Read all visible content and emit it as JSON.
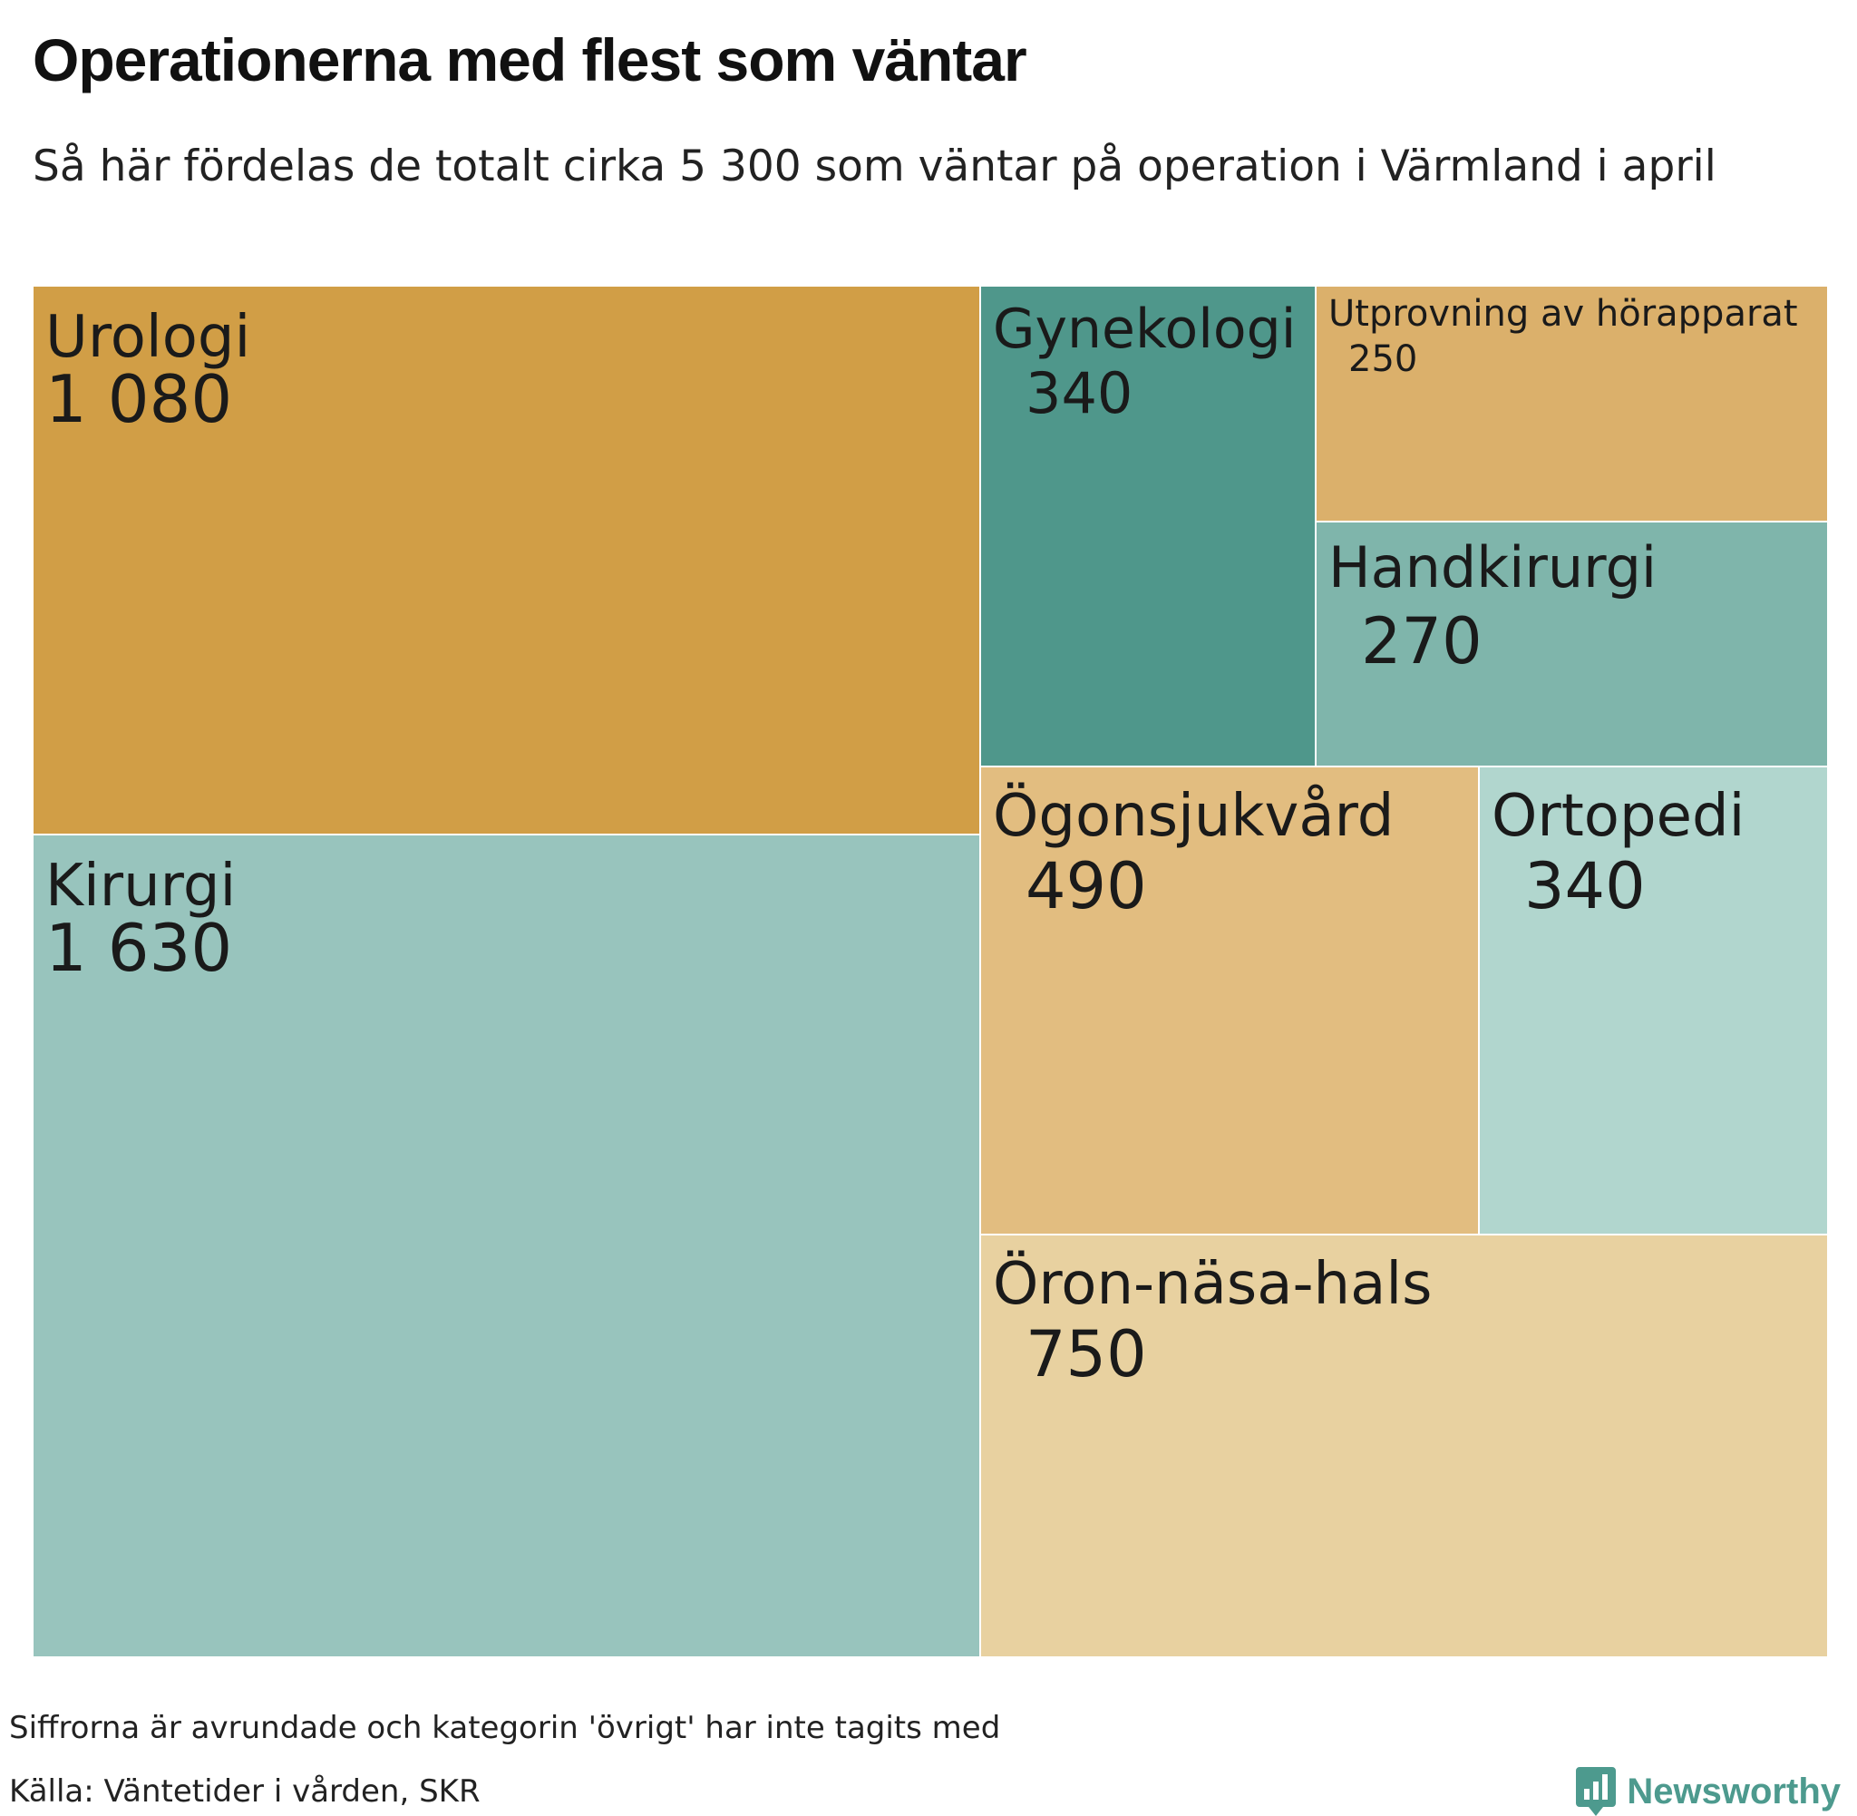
{
  "header": {
    "title": "Operationerna med flest som väntar",
    "subtitle": "Så här fördelas de totalt cirka 5 300 som väntar på operation i Värmland i april"
  },
  "chart_data": {
    "type": "treemap",
    "title": "Operationerna med flest som väntar",
    "subtitle": "Så här fördelas de totalt cirka 5 300 som väntar på operation i Värmland i april",
    "items": [
      {
        "name": "Kirurgi",
        "value": 1630,
        "label": "1 630",
        "color": "#98c4bd"
      },
      {
        "name": "Urologi",
        "value": 1080,
        "label": "1 080",
        "color": "#d19e46"
      },
      {
        "name": "Öron-näsa-hals",
        "value": 750,
        "label": "750",
        "color": "#e8d1a0"
      },
      {
        "name": "Ögonsjukvård",
        "value": 490,
        "label": "490",
        "color": "#e2bd80"
      },
      {
        "name": "Gynekologi",
        "value": 340,
        "label": "340",
        "color": "#4f978b"
      },
      {
        "name": "Ortopedi",
        "value": 340,
        "label": "340",
        "color": "#b1d6ce"
      },
      {
        "name": "Handkirurgi",
        "value": 270,
        "label": "270",
        "color": "#7fb5ab"
      },
      {
        "name": "Utprovning av hörapparat",
        "value": 250,
        "label": "250",
        "color": "#dbb06b"
      }
    ]
  },
  "footer": {
    "note": "Siffrorna är avrundade och kategorin 'övrigt' har inte tagits med",
    "source": "Källa: Väntetider i vården, SKR",
    "brand": "Newsworthy",
    "brand_icon": "newsworthy-logo-icon",
    "brand_color": "#4d9a8e"
  }
}
